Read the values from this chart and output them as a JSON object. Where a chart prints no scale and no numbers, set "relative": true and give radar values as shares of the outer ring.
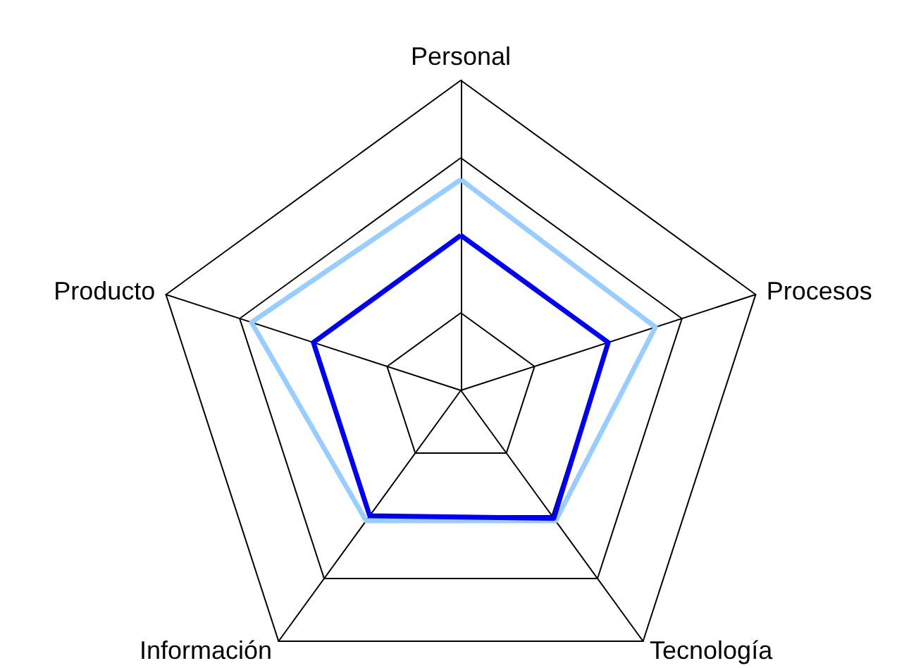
{
  "chart_data": {
    "type": "radar",
    "relative": true,
    "categories": [
      "Personal",
      "Procesos",
      "Tecnología",
      "Información",
      "Producto"
    ],
    "series": [
      {
        "color": "#99ccff",
        "values": [
          0.68,
          0.66,
          0.52,
          0.52,
          0.71
        ]
      },
      {
        "color": "#0000ee",
        "values": [
          0.5,
          0.5,
          0.51,
          0.5,
          0.5
        ]
      }
    ],
    "grid": true,
    "marker": "none",
    "line_style": "solid"
  }
}
